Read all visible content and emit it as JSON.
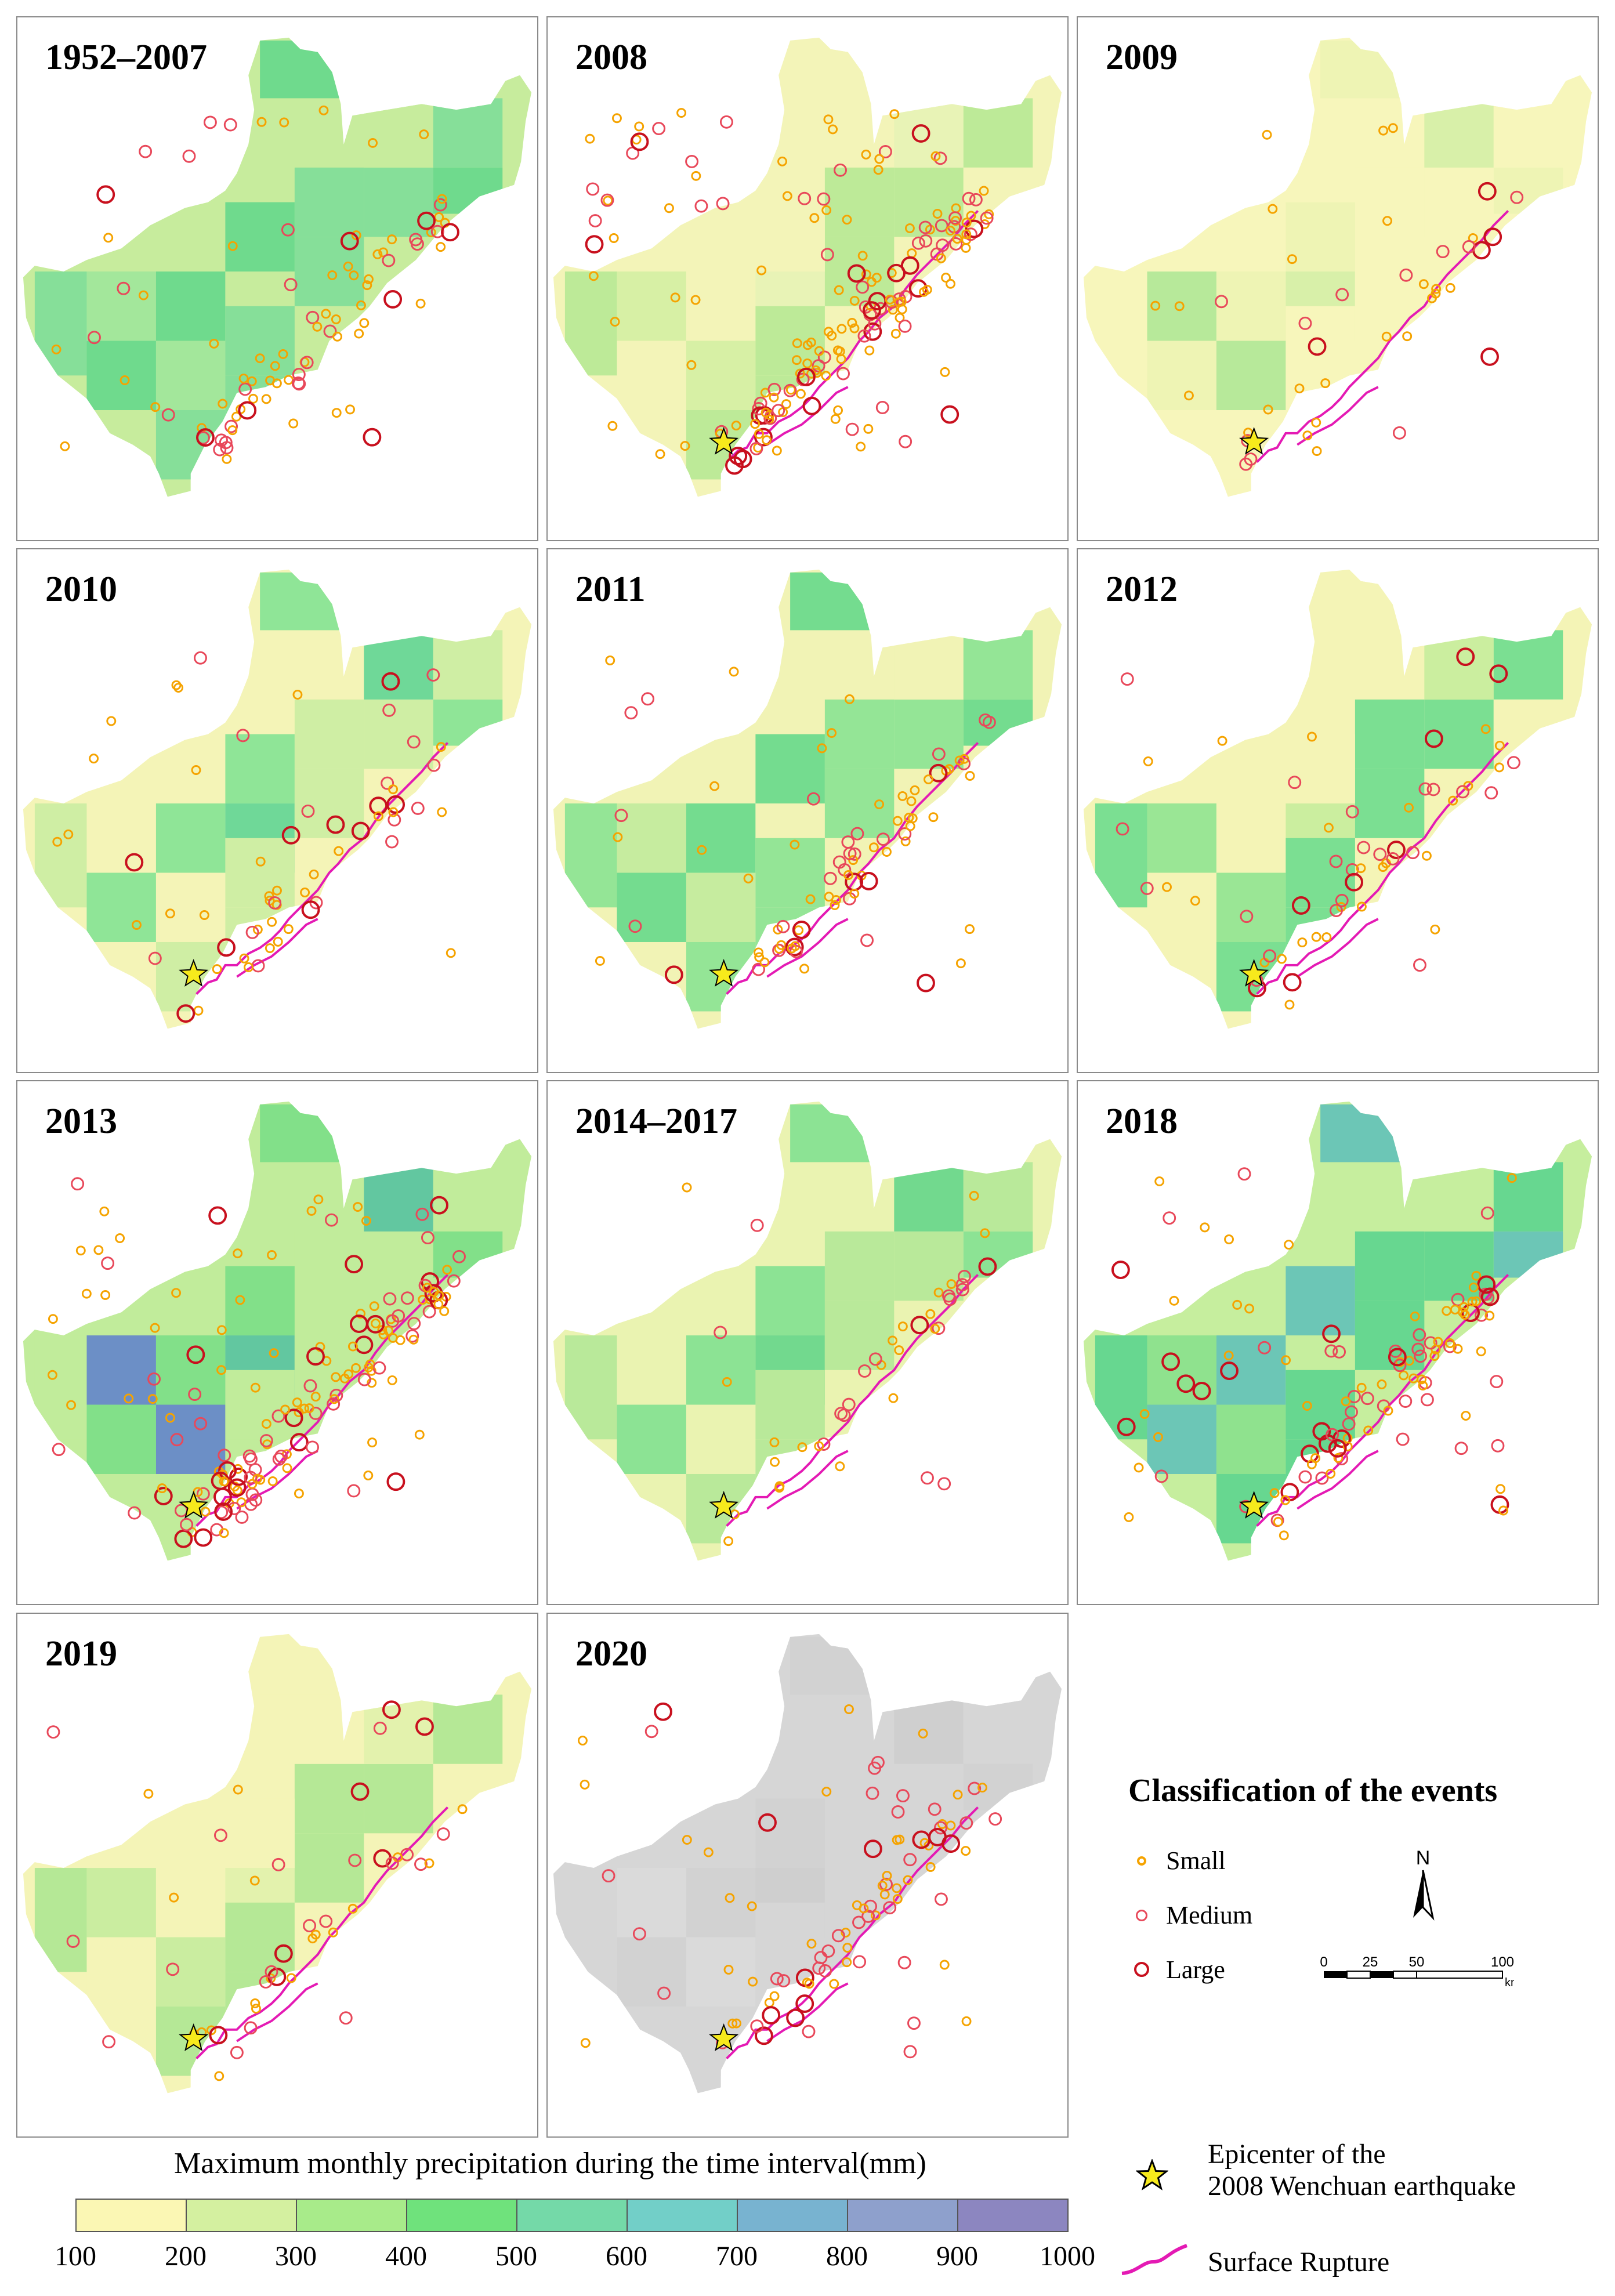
{
  "panels": [
    {
      "title": "1952–2007",
      "palette": "p1"
    },
    {
      "title": "2008",
      "palette": "p2"
    },
    {
      "title": "2009",
      "palette": "p3"
    },
    {
      "title": "2010",
      "palette": "p4"
    },
    {
      "title": "2011",
      "palette": "p5"
    },
    {
      "title": "2012",
      "palette": "p6"
    },
    {
      "title": "2013",
      "palette": "p7"
    },
    {
      "title": "2014–2017",
      "palette": "p8"
    },
    {
      "title": "2018",
      "palette": "p9"
    },
    {
      "title": "2019",
      "palette": "p10"
    },
    {
      "title": "2020",
      "palette": "gray"
    }
  ],
  "legend": {
    "classification_title": "Classification of the events",
    "classes": [
      {
        "label": "Small",
        "color": "#f5a300"
      },
      {
        "label": "Medium",
        "color": "#e8485a"
      },
      {
        "label": "Large",
        "color": "#c8101e"
      }
    ],
    "north_label": "N",
    "scale": {
      "ticks": [
        "0",
        "25",
        "50",
        "100"
      ],
      "unit": "km"
    },
    "epicenter_label_line1": "Epicenter of the",
    "epicenter_label_line2": "2008 Wenchuan earthquake",
    "rupture_label": "Surface Rupture"
  },
  "colorbar": {
    "title": "Maximum monthly precipitation during the time interval(mm)",
    "ticks": [
      "100",
      "200",
      "300",
      "400",
      "500",
      "600",
      "700",
      "800",
      "900",
      "1000"
    ],
    "colors": [
      "#fbf7b4",
      "#d4f0a0",
      "#a8eb8a",
      "#6fe27c",
      "#74d9a8",
      "#72cfc8",
      "#78b3d0",
      "#8ea0cc",
      "#8c86c0"
    ]
  }
}
